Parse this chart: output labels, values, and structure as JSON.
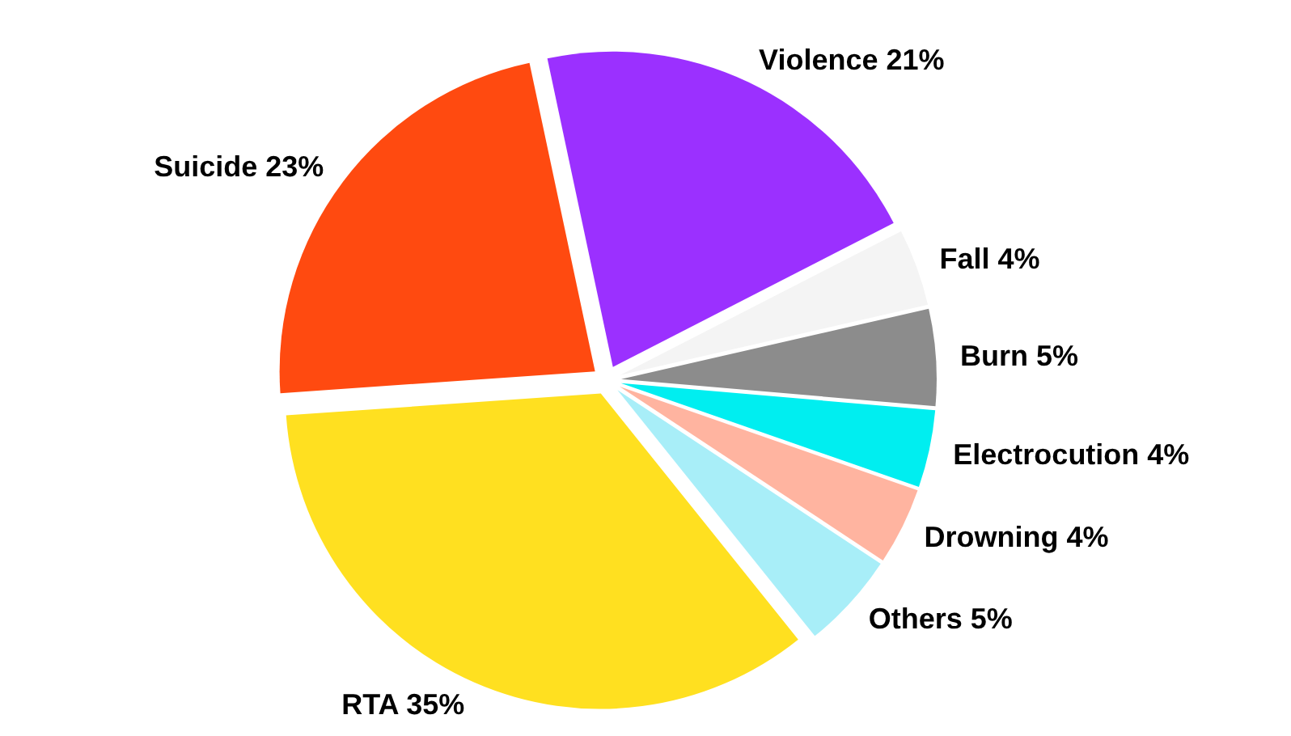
{
  "chart_data": {
    "type": "pie",
    "categories": [
      "Violence",
      "Fall",
      "Burn",
      "Electrocution",
      "Drowning",
      "Others",
      "RTA",
      "Suicide"
    ],
    "values": [
      21,
      4,
      5,
      4,
      4,
      5,
      35,
      23
    ],
    "value_labels": [
      "21%",
      "4%",
      "5%",
      "4%",
      "4%",
      "5%",
      "35%",
      "23%"
    ],
    "colors": [
      "#9b30ff",
      "#f4f4f4",
      "#8c8c8c",
      "#00eef0",
      "#ffb4a0",
      "#a8eef8",
      "#ffe020",
      "#ff4a10"
    ]
  }
}
